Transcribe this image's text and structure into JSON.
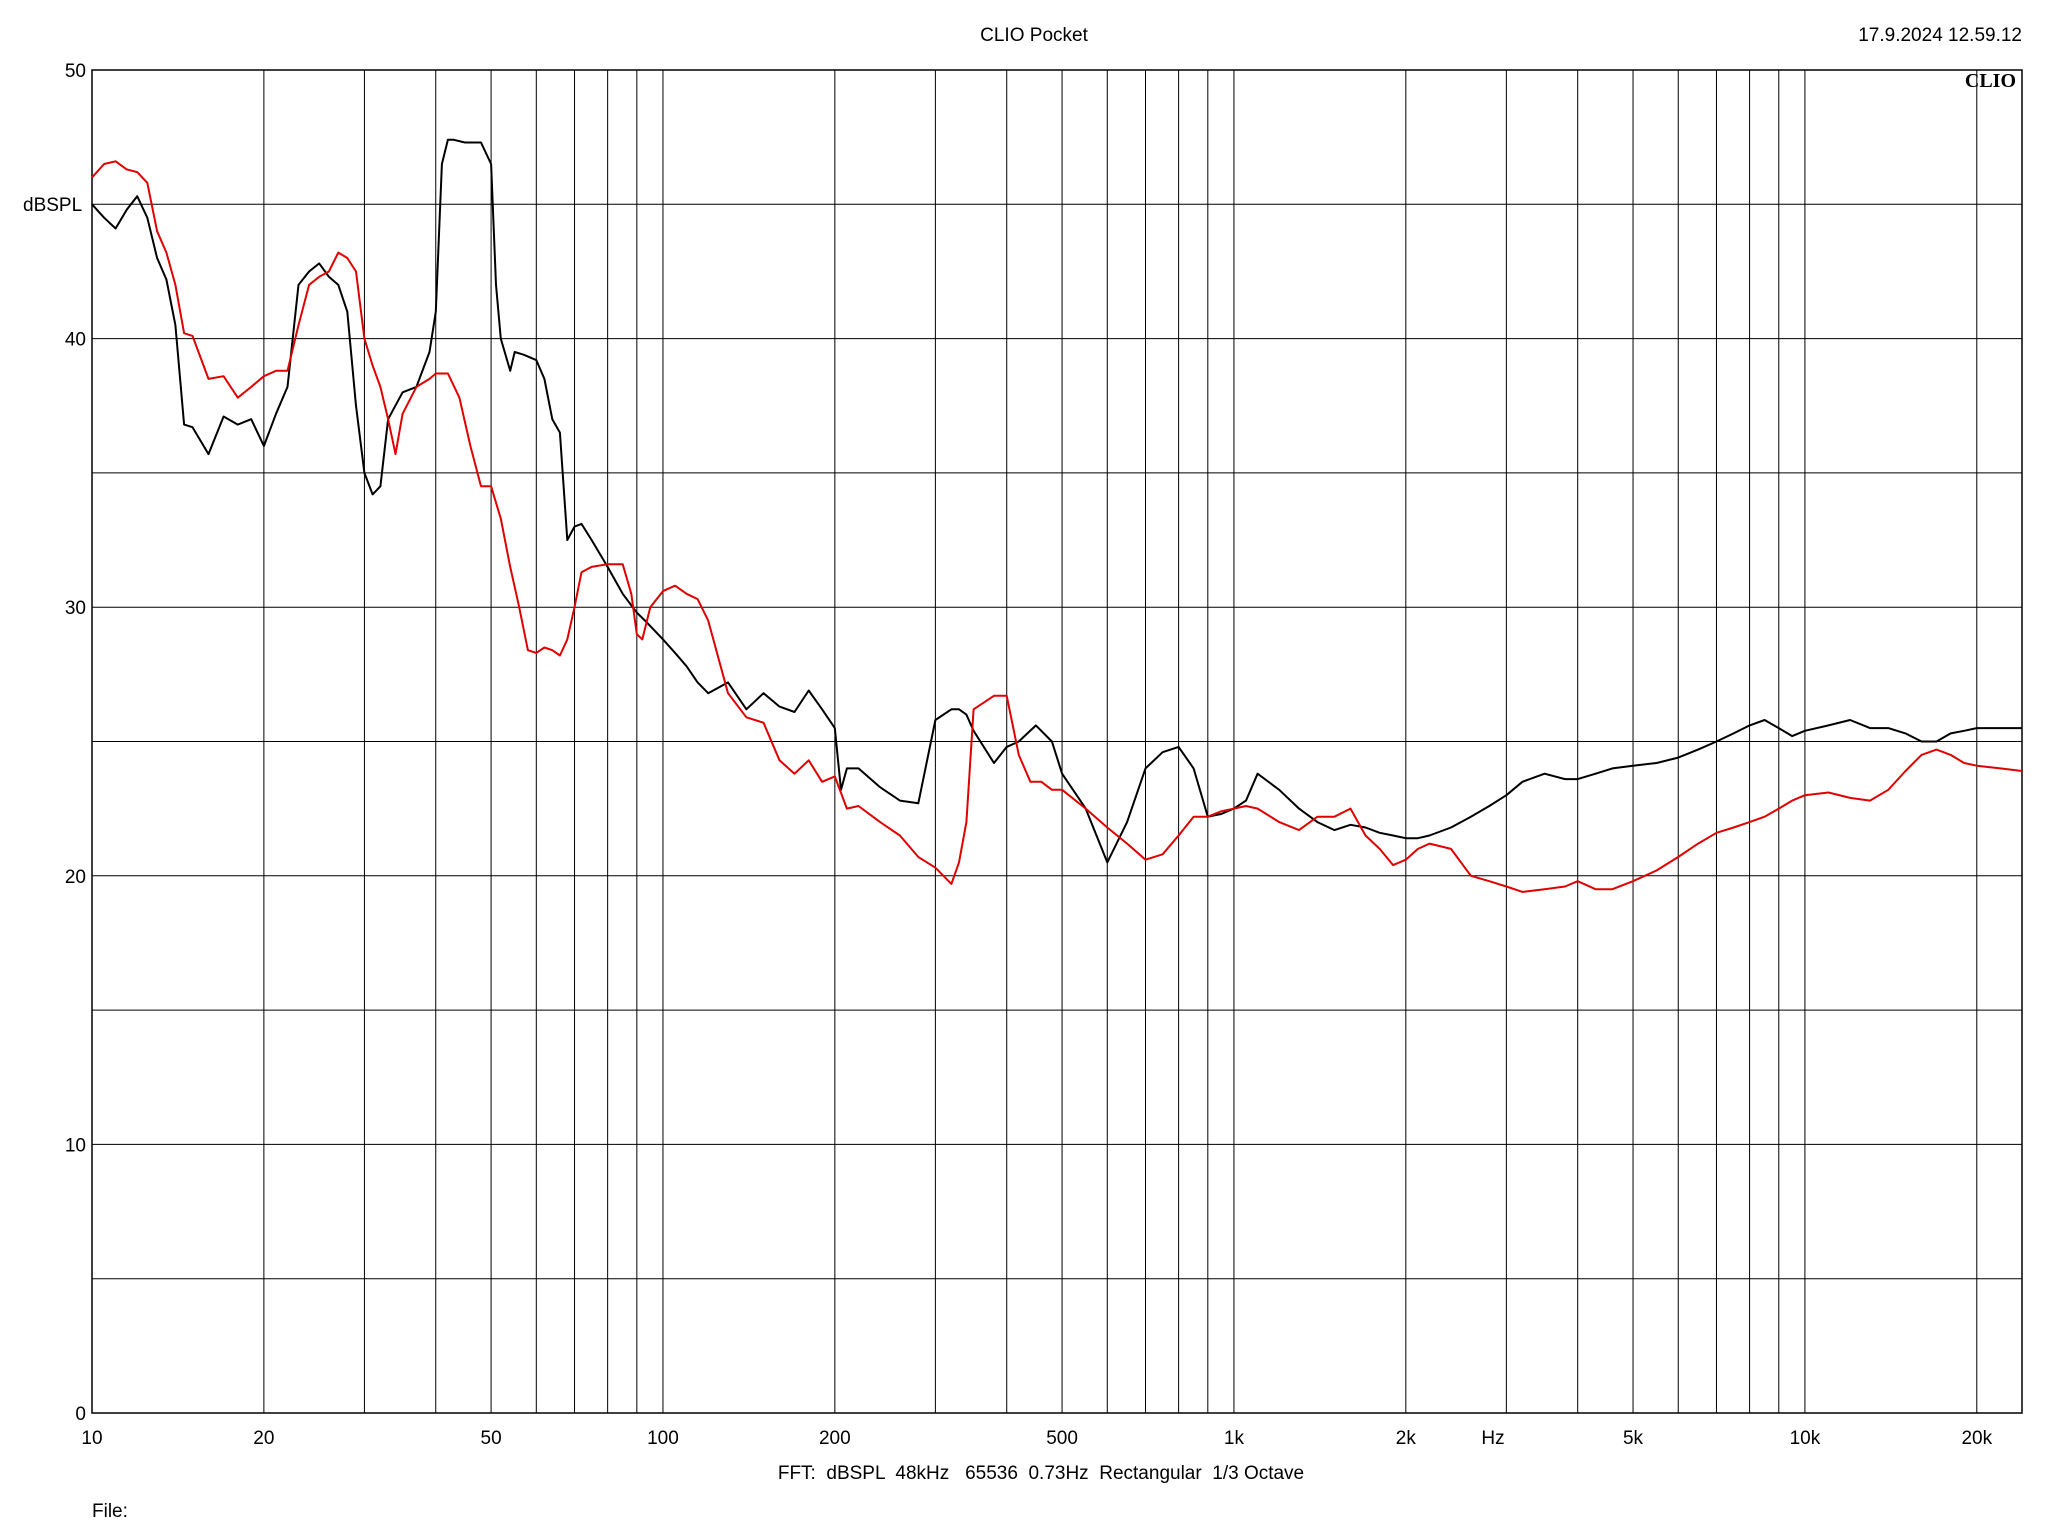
{
  "header": {
    "title": "CLIO Pocket",
    "timestamp": "17.9.2024 12.59.12",
    "logo": "CLIO"
  },
  "footer": {
    "settings": "FFT:  dBSPL  48kHz   65536  0.73Hz  Rectangular  1/3 Octave",
    "file_label": "File:"
  },
  "chart_data": {
    "type": "line",
    "title": "CLIO Pocket",
    "xlabel": "Hz",
    "ylabel": "dBSPL",
    "xscale": "log",
    "xlim": [
      10,
      24000
    ],
    "ylim": [
      0,
      50
    ],
    "grid": true,
    "y_ticks": [
      0,
      10,
      20,
      30,
      40,
      50
    ],
    "y_tick_labels": [
      "0",
      "10",
      "20",
      "30",
      "40",
      "50"
    ],
    "x_ticks": [
      10,
      20,
      50,
      100,
      200,
      500,
      1000,
      2000,
      5000,
      10000,
      20000
    ],
    "x_tick_labels": [
      "10",
      "20",
      "50",
      "100",
      "200",
      "500",
      "1k",
      "2k",
      "5k",
      "10k",
      "20k"
    ],
    "series": [
      {
        "color": "#000000",
        "x": [
          10,
          10.5,
          11,
          11.5,
          12,
          12.5,
          13,
          13.5,
          14,
          14.5,
          15,
          16,
          17,
          18,
          19,
          20,
          21,
          22,
          23,
          24,
          25,
          26,
          27,
          28,
          29,
          30,
          31,
          32,
          33,
          35,
          37,
          39,
          40,
          41,
          42,
          43,
          45,
          48,
          50,
          51,
          52,
          54,
          55,
          57,
          60,
          62,
          64,
          66,
          68,
          70,
          72,
          75,
          80,
          85,
          90,
          93,
          100,
          105,
          110,
          115,
          120,
          130,
          140,
          150,
          160,
          170,
          180,
          190,
          200,
          205,
          210,
          220,
          240,
          260,
          280,
          300,
          320,
          330,
          340,
          350,
          380,
          400,
          420,
          450,
          480,
          500,
          550,
          600,
          650,
          700,
          750,
          800,
          850,
          900,
          950,
          1000,
          1050,
          1100,
          1200,
          1300,
          1400,
          1500,
          1600,
          1700,
          1800,
          1900,
          2000,
          2100,
          2200,
          2400,
          2600,
          2800,
          3000,
          3200,
          3500,
          3800,
          4000,
          4300,
          4600,
          5000,
          5500,
          6000,
          6500,
          7000,
          7500,
          8000,
          8500,
          9000,
          9500,
          10000,
          11000,
          12000,
          13000,
          14000,
          15000,
          16000,
          17000,
          18000,
          19000,
          20000,
          22000,
          24000
        ],
        "y": [
          45.0,
          44.5,
          44.1,
          44.8,
          45.3,
          44.5,
          43.0,
          42.2,
          40.5,
          36.8,
          36.7,
          35.7,
          37.1,
          36.8,
          37.0,
          36.0,
          37.2,
          38.2,
          42.0,
          42.5,
          42.8,
          42.3,
          42.0,
          41.0,
          37.5,
          35.0,
          34.2,
          34.5,
          37.0,
          38.0,
          38.2,
          39.5,
          41.0,
          46.5,
          47.4,
          47.4,
          47.3,
          47.3,
          46.5,
          42.0,
          40.0,
          38.8,
          39.5,
          39.4,
          39.2,
          38.5,
          37.0,
          36.5,
          32.5,
          33.0,
          33.1,
          32.5,
          31.5,
          30.5,
          29.8,
          29.5,
          28.8,
          28.3,
          27.8,
          27.2,
          26.8,
          27.2,
          26.2,
          26.8,
          26.3,
          26.1,
          26.9,
          26.2,
          25.5,
          23.2,
          24.0,
          24.0,
          23.3,
          22.8,
          22.7,
          25.8,
          26.2,
          26.2,
          26.0,
          25.4,
          24.2,
          24.8,
          25.0,
          25.6,
          25.0,
          23.8,
          22.5,
          20.5,
          22.0,
          24.0,
          24.6,
          24.8,
          24.0,
          22.2,
          22.3,
          22.5,
          22.8,
          23.8,
          23.2,
          22.5,
          22.0,
          21.7,
          21.9,
          21.8,
          21.6,
          21.5,
          21.4,
          21.4,
          21.5,
          21.8,
          22.2,
          22.6,
          23.0,
          23.5,
          23.8,
          23.6,
          23.6,
          23.8,
          24.0,
          24.1,
          24.2,
          24.4,
          24.7,
          25.0,
          25.3,
          25.6,
          25.8,
          25.5,
          25.2,
          25.4,
          25.6,
          25.8,
          25.5,
          25.5,
          25.3,
          25.0,
          25.0,
          25.3,
          25.4,
          25.5,
          25.5,
          25.5
        ]
      },
      {
        "color": "#e00000",
        "x": [
          10,
          10.5,
          11,
          11.5,
          12,
          12.5,
          13,
          13.5,
          14,
          14.5,
          15,
          16,
          17,
          18,
          19,
          20,
          21,
          22,
          23,
          24,
          25,
          26,
          27,
          28,
          29,
          30,
          31,
          32,
          33,
          34,
          35,
          37,
          39,
          40,
          42,
          44,
          46,
          48,
          50,
          52,
          54,
          56,
          58,
          60,
          62,
          64,
          66,
          68,
          70,
          72,
          75,
          80,
          85,
          88,
          90,
          92,
          95,
          100,
          105,
          110,
          115,
          120,
          130,
          140,
          150,
          160,
          170,
          180,
          190,
          200,
          210,
          220,
          240,
          260,
          280,
          300,
          320,
          330,
          340,
          350,
          380,
          400,
          420,
          440,
          460,
          480,
          500,
          550,
          600,
          650,
          700,
          750,
          800,
          850,
          900,
          950,
          1000,
          1050,
          1100,
          1200,
          1300,
          1400,
          1500,
          1600,
          1700,
          1800,
          1900,
          2000,
          2100,
          2200,
          2400,
          2600,
          2800,
          3000,
          3200,
          3500,
          3800,
          4000,
          4300,
          4600,
          5000,
          5500,
          6000,
          6500,
          7000,
          7500,
          8000,
          8500,
          9000,
          9500,
          10000,
          11000,
          12000,
          13000,
          14000,
          15000,
          16000,
          17000,
          18000,
          19000,
          20000,
          22000,
          24000
        ],
        "y": [
          46.0,
          46.5,
          46.6,
          46.3,
          46.2,
          45.8,
          44.0,
          43.2,
          42.0,
          40.2,
          40.1,
          38.5,
          38.6,
          37.8,
          38.2,
          38.6,
          38.8,
          38.8,
          40.5,
          42.0,
          42.3,
          42.5,
          43.2,
          43.0,
          42.5,
          40.0,
          39.0,
          38.2,
          37.0,
          35.7,
          37.2,
          38.2,
          38.5,
          38.7,
          38.7,
          37.8,
          36.0,
          34.5,
          34.5,
          33.3,
          31.5,
          30.0,
          28.4,
          28.3,
          28.5,
          28.4,
          28.2,
          28.8,
          30.0,
          31.3,
          31.5,
          31.6,
          31.6,
          30.5,
          29.0,
          28.8,
          30.0,
          30.6,
          30.8,
          30.5,
          30.3,
          29.5,
          26.8,
          25.9,
          25.7,
          24.3,
          23.8,
          24.3,
          23.5,
          23.7,
          22.5,
          22.6,
          22.0,
          21.5,
          20.7,
          20.3,
          19.7,
          20.5,
          22.0,
          26.2,
          26.7,
          26.7,
          24.5,
          23.5,
          23.5,
          23.2,
          23.2,
          22.5,
          21.8,
          21.2,
          20.6,
          20.8,
          21.5,
          22.2,
          22.2,
          22.4,
          22.5,
          22.6,
          22.5,
          22.0,
          21.7,
          22.2,
          22.2,
          22.5,
          21.5,
          21.0,
          20.4,
          20.6,
          21.0,
          21.2,
          21.0,
          20.0,
          19.8,
          19.6,
          19.4,
          19.5,
          19.6,
          19.8,
          19.5,
          19.5,
          19.8,
          20.2,
          20.7,
          21.2,
          21.6,
          21.8,
          22.0,
          22.2,
          22.5,
          22.8,
          23.0,
          23.1,
          22.9,
          22.8,
          23.2,
          23.9,
          24.5,
          24.7,
          24.5,
          24.2,
          24.1,
          24.0,
          23.9
        ]
      }
    ]
  }
}
